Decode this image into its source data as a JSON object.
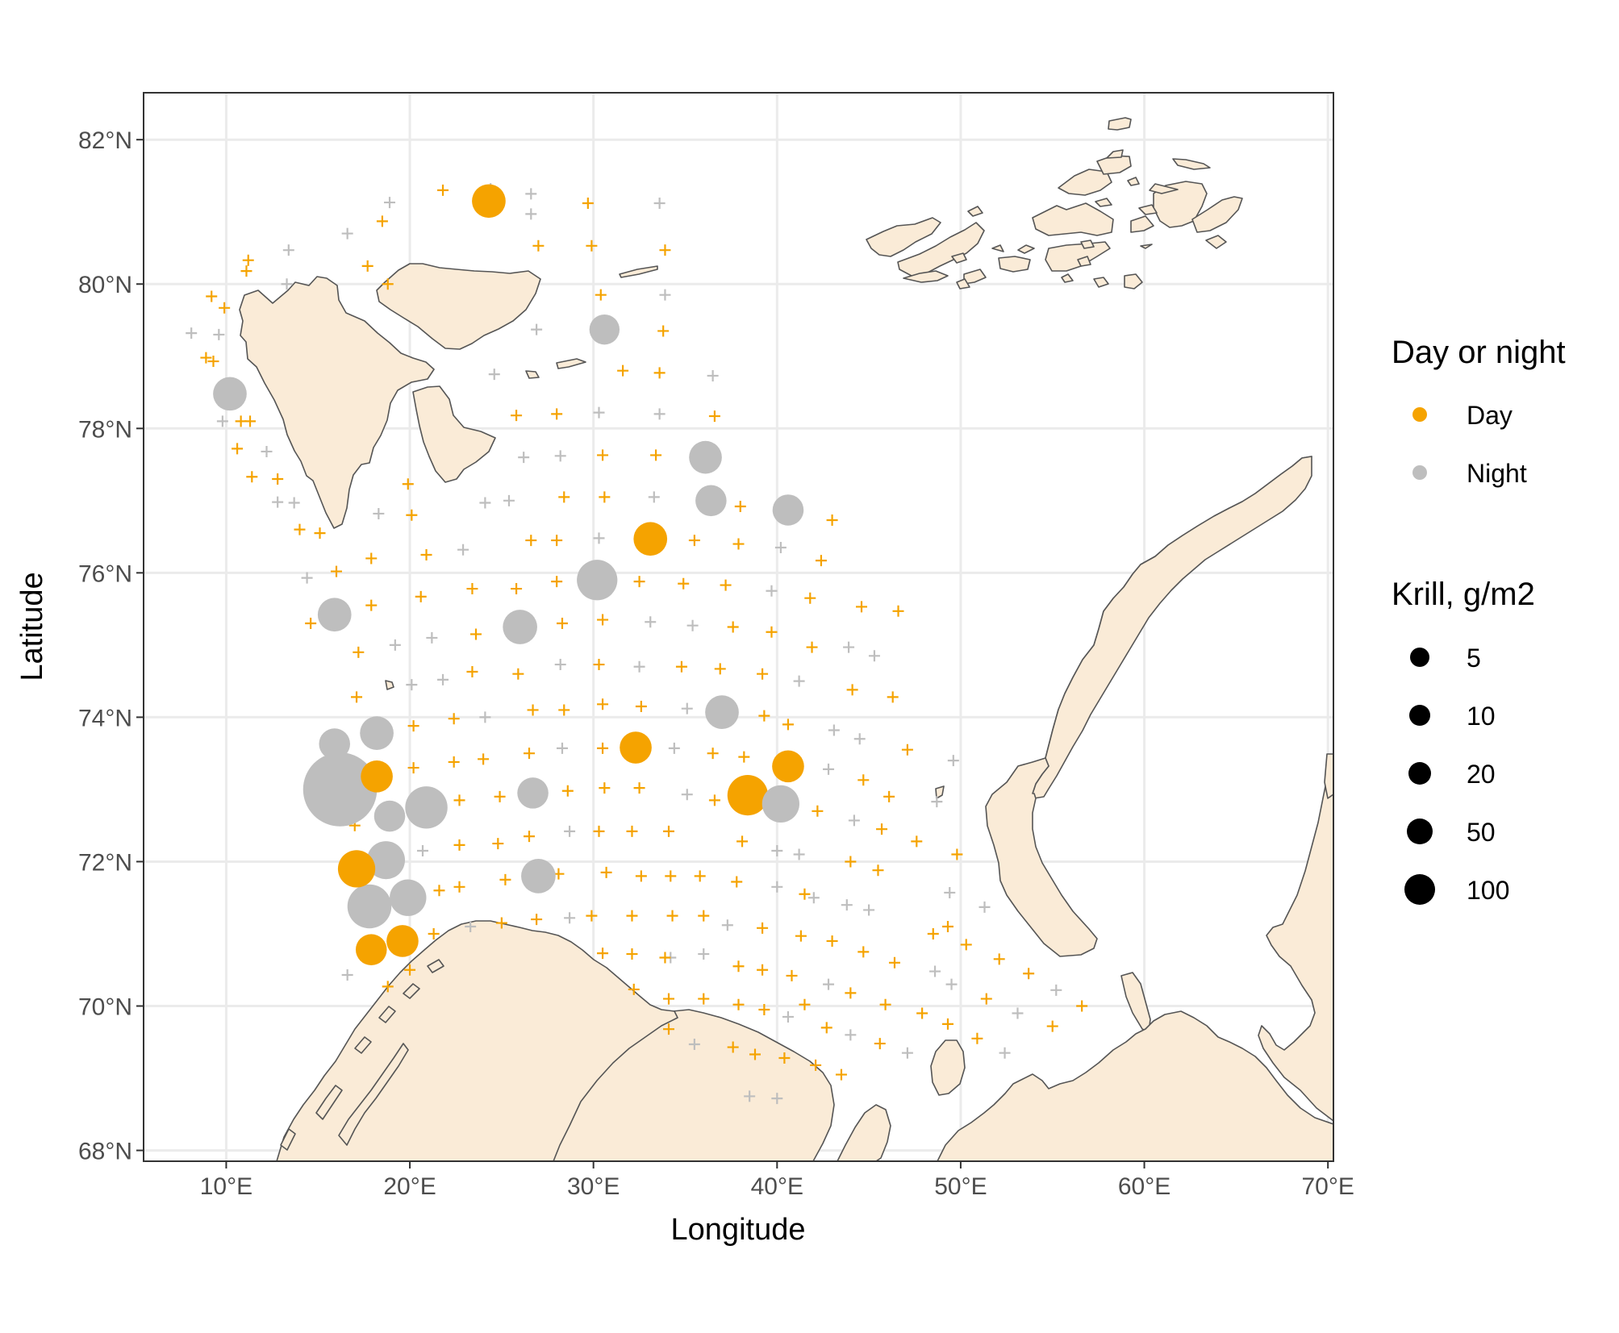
{
  "chart_data": {
    "type": "scatter",
    "xlabel": "Longitude",
    "ylabel": "Latitude",
    "xlim": [
      5.5,
      70.3
    ],
    "ylim": [
      67.85,
      82.65
    ],
    "x_ticks": [
      {
        "value": 10,
        "label": "10°E"
      },
      {
        "value": 20,
        "label": "20°E"
      },
      {
        "value": 30,
        "label": "30°E"
      },
      {
        "value": 40,
        "label": "40°E"
      },
      {
        "value": 50,
        "label": "50°E"
      },
      {
        "value": 60,
        "label": "60°E"
      },
      {
        "value": 70,
        "label": "70°E"
      }
    ],
    "y_ticks": [
      {
        "value": 68,
        "label": "68°N"
      },
      {
        "value": 70,
        "label": "70°N"
      },
      {
        "value": 72,
        "label": "72°N"
      },
      {
        "value": 74,
        "label": "74°N"
      },
      {
        "value": 76,
        "label": "76°N"
      },
      {
        "value": 78,
        "label": "78°N"
      },
      {
        "value": 80,
        "label": "80°N"
      },
      {
        "value": 82,
        "label": "82°N"
      }
    ],
    "grid": true,
    "colors": {
      "Day": "#f5a300",
      "Night": "#bebebe",
      "land_fill": "#faebd7",
      "land_stroke": "#555555",
      "grid": "#ebebeb"
    },
    "legend_colour": {
      "title": "Day or night",
      "entries": [
        "Day",
        "Night"
      ],
      "placement": "right"
    },
    "legend_size": {
      "title": "Krill, g/m2",
      "entries": [
        5,
        10,
        20,
        50,
        100
      ],
      "placement": "right"
    },
    "krill_stations": [
      {
        "lon": 24.3,
        "lat": 81.15,
        "period": "Day",
        "krill": 14
      },
      {
        "lon": 10.2,
        "lat": 78.48,
        "period": "Night",
        "krill": 14
      },
      {
        "lon": 30.6,
        "lat": 79.37,
        "period": "Night",
        "krill": 10
      },
      {
        "lon": 36.1,
        "lat": 77.6,
        "period": "Night",
        "krill": 13
      },
      {
        "lon": 36.4,
        "lat": 77.0,
        "period": "Night",
        "krill": 11
      },
      {
        "lon": 40.6,
        "lat": 76.87,
        "period": "Night",
        "krill": 11
      },
      {
        "lon": 33.1,
        "lat": 76.47,
        "period": "Day",
        "krill": 14
      },
      {
        "lon": 30.2,
        "lat": 75.9,
        "period": "Night",
        "krill": 24
      },
      {
        "lon": 15.9,
        "lat": 75.42,
        "period": "Night",
        "krill": 14
      },
      {
        "lon": 26.0,
        "lat": 75.25,
        "period": "Night",
        "krill": 15
      },
      {
        "lon": 37.0,
        "lat": 74.07,
        "period": "Night",
        "krill": 14
      },
      {
        "lon": 15.9,
        "lat": 73.63,
        "period": "Night",
        "krill": 11
      },
      {
        "lon": 18.2,
        "lat": 73.78,
        "period": "Night",
        "krill": 14
      },
      {
        "lon": 32.3,
        "lat": 73.58,
        "period": "Day",
        "krill": 12
      },
      {
        "lon": 40.6,
        "lat": 73.32,
        "period": "Day",
        "krill": 12
      },
      {
        "lon": 18.2,
        "lat": 73.18,
        "period": "Day",
        "krill": 12
      },
      {
        "lon": 16.2,
        "lat": 73.0,
        "period": "Night",
        "krill": 110
      },
      {
        "lon": 26.7,
        "lat": 72.95,
        "period": "Night",
        "krill": 11
      },
      {
        "lon": 38.4,
        "lat": 72.92,
        "period": "Day",
        "krill": 24
      },
      {
        "lon": 40.2,
        "lat": 72.8,
        "period": "Night",
        "krill": 19
      },
      {
        "lon": 20.9,
        "lat": 72.75,
        "period": "Night",
        "krill": 27
      },
      {
        "lon": 18.9,
        "lat": 72.63,
        "period": "Night",
        "krill": 11
      },
      {
        "lon": 18.7,
        "lat": 72.02,
        "period": "Night",
        "krill": 20
      },
      {
        "lon": 17.1,
        "lat": 71.9,
        "period": "Day",
        "krill": 19
      },
      {
        "lon": 27.0,
        "lat": 71.8,
        "period": "Night",
        "krill": 15
      },
      {
        "lon": 19.9,
        "lat": 71.5,
        "period": "Night",
        "krill": 18
      },
      {
        "lon": 17.8,
        "lat": 71.38,
        "period": "Night",
        "krill": 30
      },
      {
        "lon": 19.6,
        "lat": 70.9,
        "period": "Day",
        "krill": 12
      },
      {
        "lon": 17.9,
        "lat": 70.78,
        "period": "Day",
        "krill": 11
      }
    ],
    "zero_catch_day": [
      [
        21.8,
        81.3
      ],
      [
        29.7,
        81.12
      ],
      [
        18.5,
        80.87
      ],
      [
        27.0,
        80.53
      ],
      [
        29.9,
        80.53
      ],
      [
        33.9,
        80.47
      ],
      [
        11.2,
        80.33
      ],
      [
        11.1,
        80.18
      ],
      [
        17.7,
        80.25
      ],
      [
        18.8,
        80.0
      ],
      [
        9.2,
        79.83
      ],
      [
        9.9,
        79.67
      ],
      [
        30.4,
        79.85
      ],
      [
        33.8,
        79.35
      ],
      [
        8.9,
        78.98
      ],
      [
        9.3,
        78.93
      ],
      [
        31.6,
        78.8
      ],
      [
        33.6,
        78.77
      ],
      [
        25.8,
        78.18
      ],
      [
        28.0,
        78.2
      ],
      [
        36.6,
        78.17
      ],
      [
        10.8,
        78.1
      ],
      [
        11.3,
        78.1
      ],
      [
        10.6,
        77.72
      ],
      [
        30.5,
        77.63
      ],
      [
        33.4,
        77.63
      ],
      [
        11.4,
        77.33
      ],
      [
        12.8,
        77.3
      ],
      [
        19.9,
        77.23
      ],
      [
        28.4,
        77.05
      ],
      [
        30.6,
        77.05
      ],
      [
        38.0,
        76.92
      ],
      [
        43.0,
        76.73
      ],
      [
        14.0,
        76.6
      ],
      [
        15.1,
        76.55
      ],
      [
        20.1,
        76.8
      ],
      [
        26.6,
        76.45
      ],
      [
        28.0,
        76.45
      ],
      [
        35.5,
        76.45
      ],
      [
        37.9,
        76.4
      ],
      [
        20.9,
        76.25
      ],
      [
        17.9,
        76.2
      ],
      [
        42.4,
        76.17
      ],
      [
        16.0,
        76.02
      ],
      [
        23.4,
        75.78
      ],
      [
        25.8,
        75.78
      ],
      [
        28.0,
        75.88
      ],
      [
        32.5,
        75.88
      ],
      [
        34.9,
        75.85
      ],
      [
        37.2,
        75.83
      ],
      [
        17.9,
        75.55
      ],
      [
        20.6,
        75.67
      ],
      [
        41.8,
        75.65
      ],
      [
        44.6,
        75.53
      ],
      [
        46.6,
        75.47
      ],
      [
        14.6,
        75.3
      ],
      [
        28.3,
        75.3
      ],
      [
        30.5,
        75.35
      ],
      [
        37.6,
        75.25
      ],
      [
        39.7,
        75.18
      ],
      [
        23.6,
        75.15
      ],
      [
        41.9,
        74.97
      ],
      [
        17.2,
        74.9
      ],
      [
        23.4,
        74.63
      ],
      [
        25.9,
        74.6
      ],
      [
        30.3,
        74.73
      ],
      [
        34.8,
        74.7
      ],
      [
        36.9,
        74.67
      ],
      [
        39.2,
        74.6
      ],
      [
        44.1,
        74.38
      ],
      [
        46.3,
        74.28
      ],
      [
        17.1,
        74.28
      ],
      [
        26.7,
        74.1
      ],
      [
        28.4,
        74.1
      ],
      [
        30.5,
        74.18
      ],
      [
        32.6,
        74.15
      ],
      [
        22.4,
        73.98
      ],
      [
        40.6,
        73.9
      ],
      [
        20.2,
        73.88
      ],
      [
        39.3,
        74.02
      ],
      [
        24.0,
        73.42
      ],
      [
        26.5,
        73.5
      ],
      [
        30.5,
        73.57
      ],
      [
        36.5,
        73.5
      ],
      [
        38.2,
        73.45
      ],
      [
        47.1,
        73.55
      ],
      [
        20.2,
        73.3
      ],
      [
        22.4,
        73.38
      ],
      [
        44.7,
        73.13
      ],
      [
        22.7,
        72.85
      ],
      [
        24.9,
        72.9
      ],
      [
        28.6,
        72.98
      ],
      [
        30.6,
        73.02
      ],
      [
        32.5,
        73.02
      ],
      [
        36.6,
        72.85
      ],
      [
        42.2,
        72.7
      ],
      [
        46.1,
        72.9
      ],
      [
        17.0,
        72.5
      ],
      [
        22.7,
        72.23
      ],
      [
        24.8,
        72.25
      ],
      [
        26.5,
        72.35
      ],
      [
        30.3,
        72.42
      ],
      [
        32.1,
        72.42
      ],
      [
        34.1,
        72.42
      ],
      [
        38.1,
        72.28
      ],
      [
        45.7,
        72.45
      ],
      [
        47.6,
        72.28
      ],
      [
        49.8,
        72.1
      ],
      [
        44.0,
        72.0
      ],
      [
        45.5,
        71.88
      ],
      [
        22.7,
        71.65
      ],
      [
        21.6,
        71.6
      ],
      [
        25.2,
        71.75
      ],
      [
        28.1,
        71.83
      ],
      [
        30.7,
        71.85
      ],
      [
        32.6,
        71.8
      ],
      [
        34.2,
        71.8
      ],
      [
        35.8,
        71.8
      ],
      [
        37.8,
        71.72
      ],
      [
        41.5,
        71.55
      ],
      [
        29.9,
        71.25
      ],
      [
        26.9,
        71.2
      ],
      [
        25.0,
        71.15
      ],
      [
        32.1,
        71.25
      ],
      [
        34.3,
        71.25
      ],
      [
        36.0,
        71.25
      ],
      [
        39.2,
        71.08
      ],
      [
        41.3,
        70.97
      ],
      [
        43.0,
        70.9
      ],
      [
        21.3,
        71.0
      ],
      [
        20.0,
        70.5
      ],
      [
        30.5,
        70.73
      ],
      [
        32.1,
        70.72
      ],
      [
        33.9,
        70.67
      ],
      [
        37.9,
        70.55
      ],
      [
        39.2,
        70.5
      ],
      [
        40.8,
        70.42
      ],
      [
        44.7,
        70.75
      ],
      [
        46.4,
        70.6
      ],
      [
        48.5,
        71.0
      ],
      [
        49.3,
        71.1
      ],
      [
        50.3,
        70.85
      ],
      [
        52.1,
        70.65
      ],
      [
        53.7,
        70.45
      ],
      [
        32.2,
        70.23
      ],
      [
        34.1,
        70.1
      ],
      [
        36.0,
        70.1
      ],
      [
        37.9,
        70.02
      ],
      [
        39.3,
        69.95
      ],
      [
        41.5,
        70.02
      ],
      [
        44.0,
        70.18
      ],
      [
        45.9,
        70.02
      ],
      [
        47.9,
        69.9
      ],
      [
        51.4,
        70.1
      ],
      [
        55.0,
        69.72
      ],
      [
        56.6,
        70.0
      ],
      [
        34.1,
        69.68
      ],
      [
        37.6,
        69.43
      ],
      [
        38.8,
        69.33
      ],
      [
        40.4,
        69.28
      ],
      [
        42.1,
        69.18
      ],
      [
        43.5,
        69.05
      ],
      [
        45.6,
        69.48
      ],
      [
        49.3,
        69.75
      ],
      [
        50.9,
        69.55
      ],
      [
        42.7,
        69.7
      ],
      [
        18.8,
        70.27
      ]
    ],
    "zero_catch_night": [
      [
        24.4,
        81.32
      ],
      [
        26.6,
        81.25
      ],
      [
        18.9,
        81.13
      ],
      [
        33.6,
        81.12
      ],
      [
        26.6,
        80.97
      ],
      [
        16.6,
        80.7
      ],
      [
        13.4,
        80.47
      ],
      [
        13.3,
        80.0
      ],
      [
        8.1,
        79.32
      ],
      [
        9.6,
        79.3
      ],
      [
        33.9,
        79.85
      ],
      [
        26.9,
        79.37
      ],
      [
        24.6,
        78.75
      ],
      [
        36.5,
        78.73
      ],
      [
        9.8,
        78.1
      ],
      [
        30.3,
        78.22
      ],
      [
        33.6,
        78.2
      ],
      [
        26.2,
        77.6
      ],
      [
        28.2,
        77.62
      ],
      [
        12.2,
        77.68
      ],
      [
        12.8,
        76.98
      ],
      [
        13.7,
        76.97
      ],
      [
        18.3,
        76.82
      ],
      [
        24.1,
        76.97
      ],
      [
        25.4,
        77.0
      ],
      [
        33.3,
        77.05
      ],
      [
        30.3,
        76.48
      ],
      [
        40.2,
        76.35
      ],
      [
        22.9,
        76.32
      ],
      [
        14.4,
        75.93
      ],
      [
        39.7,
        75.75
      ],
      [
        21.2,
        75.1
      ],
      [
        19.2,
        75.0
      ],
      [
        33.1,
        75.32
      ],
      [
        35.4,
        75.27
      ],
      [
        43.9,
        74.97
      ],
      [
        45.3,
        74.85
      ],
      [
        20.1,
        74.45
      ],
      [
        21.8,
        74.52
      ],
      [
        28.2,
        74.73
      ],
      [
        32.5,
        74.7
      ],
      [
        41.2,
        74.5
      ],
      [
        24.1,
        74.0
      ],
      [
        35.1,
        74.12
      ],
      [
        43.1,
        73.82
      ],
      [
        44.5,
        73.7
      ],
      [
        28.3,
        73.57
      ],
      [
        34.4,
        73.57
      ],
      [
        42.8,
        73.28
      ],
      [
        49.6,
        73.4
      ],
      [
        35.1,
        72.93
      ],
      [
        48.7,
        72.83
      ],
      [
        44.2,
        72.57
      ],
      [
        28.7,
        72.42
      ],
      [
        20.7,
        72.15
      ],
      [
        41.2,
        72.1
      ],
      [
        40.0,
        72.15
      ],
      [
        40.0,
        71.65
      ],
      [
        42.0,
        71.5
      ],
      [
        43.8,
        71.4
      ],
      [
        45.0,
        71.33
      ],
      [
        49.4,
        71.57
      ],
      [
        51.3,
        71.37
      ],
      [
        28.7,
        71.22
      ],
      [
        23.3,
        71.1
      ],
      [
        37.3,
        71.12
      ],
      [
        34.2,
        70.67
      ],
      [
        36.0,
        70.72
      ],
      [
        16.6,
        70.43
      ],
      [
        42.8,
        70.3
      ],
      [
        48.6,
        70.48
      ],
      [
        49.5,
        70.3
      ],
      [
        55.2,
        70.22
      ],
      [
        53.1,
        69.9
      ],
      [
        40.6,
        69.85
      ],
      [
        44.0,
        69.6
      ],
      [
        47.1,
        69.35
      ],
      [
        52.4,
        69.35
      ],
      [
        35.5,
        69.47
      ],
      [
        38.5,
        68.75
      ],
      [
        40.0,
        68.72
      ]
    ]
  }
}
